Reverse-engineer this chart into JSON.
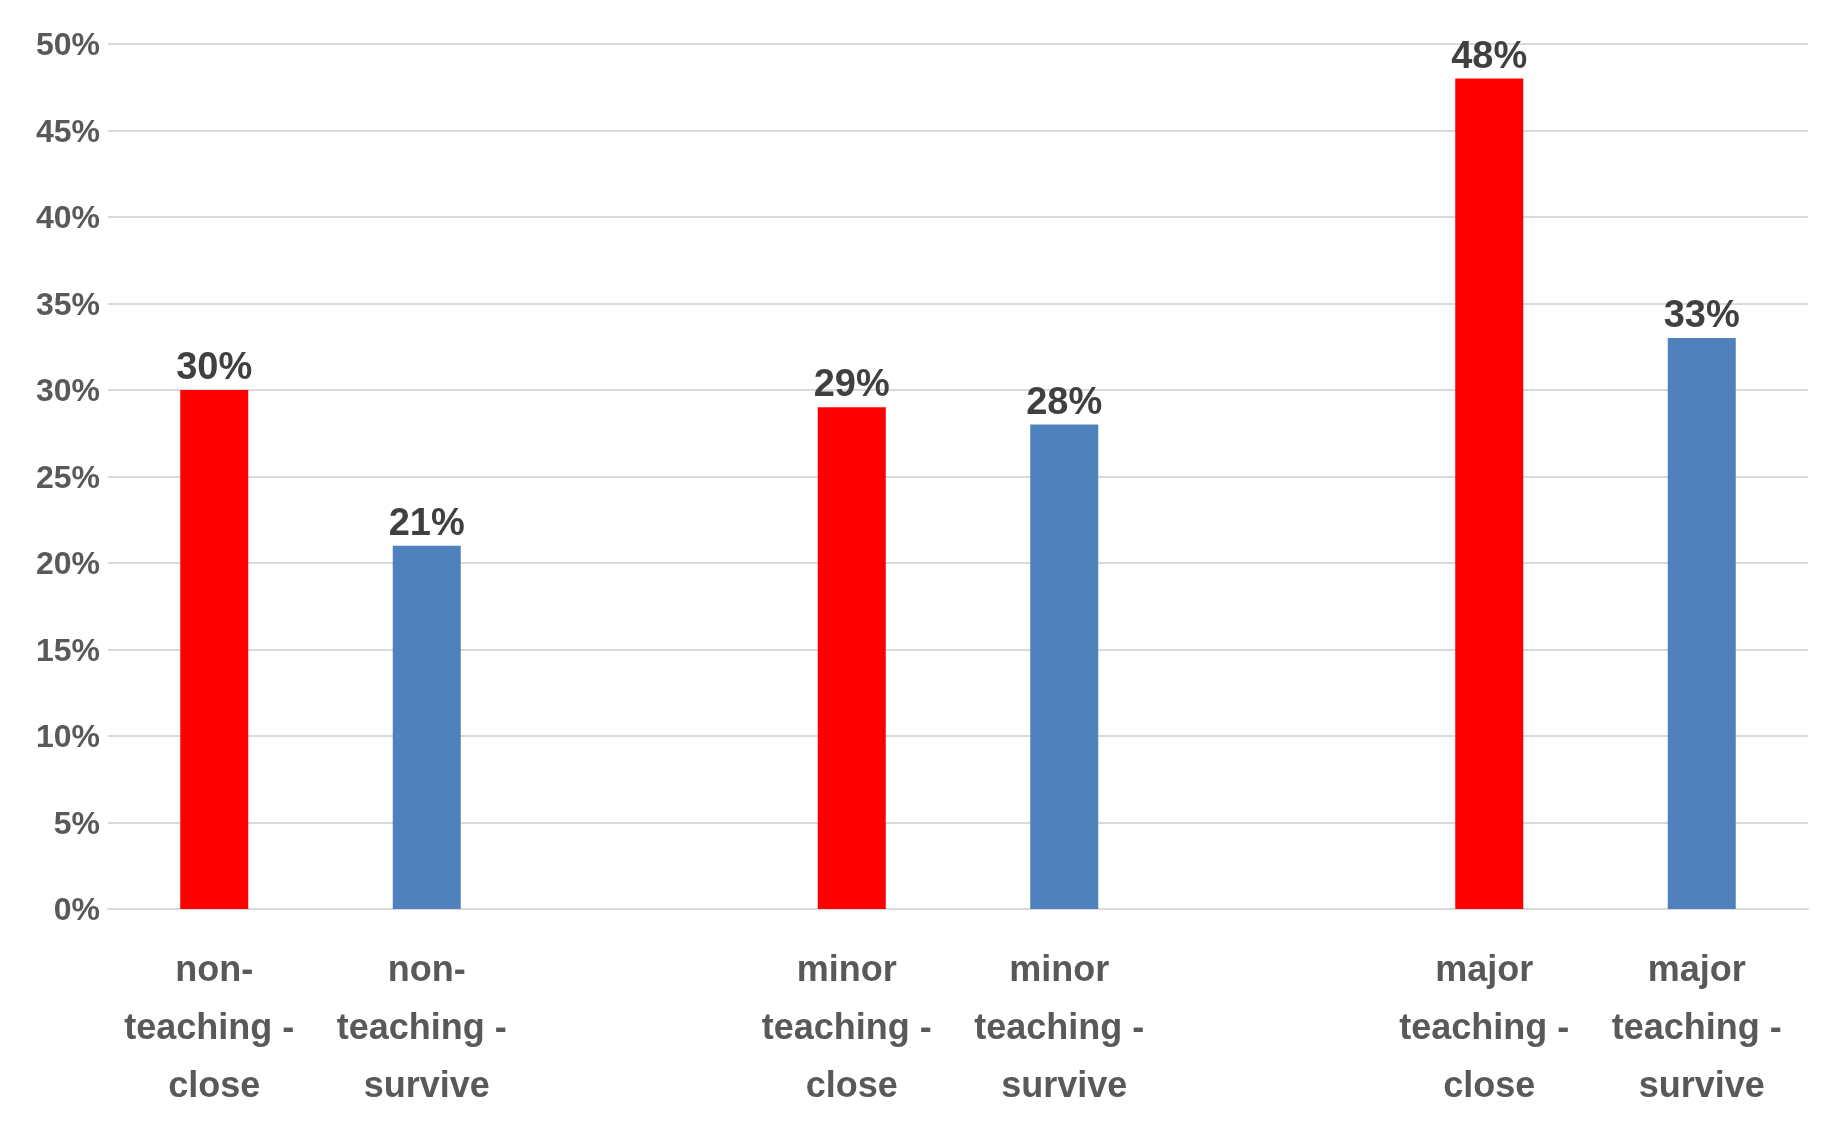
{
  "chart_data": {
    "type": "bar",
    "categories": [
      "non-teaching - close",
      "non-teaching - survive",
      null,
      "minor teaching - close",
      "minor teaching - survive",
      null,
      "major teaching - close",
      "major teaching - survive"
    ],
    "values": [
      30,
      21,
      null,
      29,
      28,
      null,
      48,
      33
    ],
    "colors": [
      "#ff0000",
      "#4f81bd",
      null,
      "#ff0000",
      "#4f81bd",
      null,
      "#ff0000",
      "#4f81bd"
    ],
    "value_labels": [
      "30%",
      "21%",
      null,
      "29%",
      "28%",
      null,
      "48%",
      "33%"
    ],
    "ylim": [
      0,
      50
    ],
    "yticks": [
      {
        "value": 0,
        "label": "0%"
      },
      {
        "value": 5,
        "label": "5%"
      },
      {
        "value": 10,
        "label": "10%"
      },
      {
        "value": 15,
        "label": "15%"
      },
      {
        "value": 20,
        "label": "20%"
      },
      {
        "value": 25,
        "label": "25%"
      },
      {
        "value": 30,
        "label": "30%"
      },
      {
        "value": 35,
        "label": "35%"
      },
      {
        "value": 40,
        "label": "40%"
      },
      {
        "value": 45,
        "label": "45%"
      },
      {
        "value": 50,
        "label": "50%"
      }
    ],
    "grid": "y"
  }
}
